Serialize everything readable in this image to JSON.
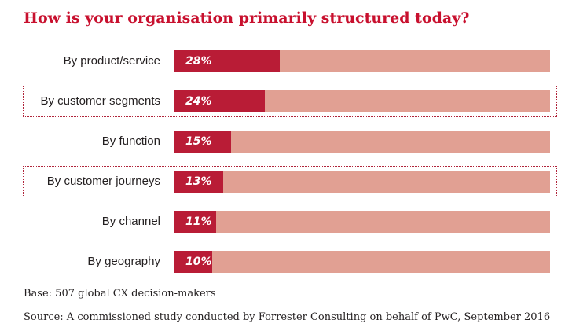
{
  "chart_data": {
    "type": "bar",
    "orientation": "horizontal",
    "title": "How is your organisation primarily structured today?",
    "categories": [
      "By product/service",
      "By customer segments",
      "By function",
      "By customer journeys",
      "By channel",
      "By geography"
    ],
    "values": [
      28,
      24,
      15,
      13,
      11,
      10
    ],
    "value_labels": [
      "28%",
      "24%",
      "15%",
      "13%",
      "11%",
      "10%"
    ],
    "highlighted": [
      false,
      true,
      false,
      true,
      false,
      false
    ],
    "xlim": [
      0,
      100
    ],
    "grid": false,
    "colors": {
      "bar": "#b91c36",
      "track": "#e1a093",
      "title": "#c8102e",
      "highlight_border": "#b0243a"
    }
  },
  "footnotes": {
    "base": "Base: 507 global CX decision-makers",
    "source": "Source: A commissioned study conducted by Forrester Consulting on behalf of PwC, September 2016"
  }
}
